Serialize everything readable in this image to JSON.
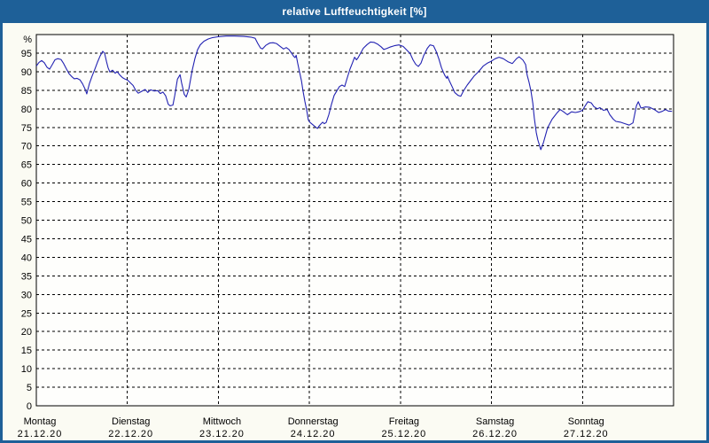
{
  "window": {
    "title": "relative Luftfeuchtigkeit [%]"
  },
  "colors": {
    "chrome": "#1e6098",
    "title_text": "#ffffff",
    "background": "#fbfbf3",
    "plot_background": "#fefefc",
    "line": "#2222b2",
    "grid": "#000000",
    "axis": "#000000",
    "label_text": "#000000"
  },
  "chart_data": {
    "type": "line",
    "title": "relative Luftfeuchtigkeit [%]",
    "ylabel": "%",
    "ylim": [
      0,
      100
    ],
    "y_ticks": [
      0,
      5,
      10,
      15,
      20,
      25,
      30,
      35,
      40,
      45,
      50,
      55,
      60,
      65,
      70,
      75,
      80,
      85,
      90,
      95
    ],
    "grid": true,
    "legend": "none",
    "x_range_hours": [
      0,
      168
    ],
    "x_axis": {
      "days": [
        {
          "name": "Montag",
          "date": "21.12.20"
        },
        {
          "name": "Dienstag",
          "date": "22.12.20"
        },
        {
          "name": "Mittwoch",
          "date": "23.12.20"
        },
        {
          "name": "Donnerstag",
          "date": "24.12.20"
        },
        {
          "name": "Freitag",
          "date": "25.12.20"
        },
        {
          "name": "Samstag",
          "date": "26.12.20"
        },
        {
          "name": "Sonntag",
          "date": "27.12.20"
        }
      ]
    },
    "series": [
      {
        "name": "relative Luftfeuchtigkeit",
        "unit": "%",
        "points": [
          [
            0,
            91.5
          ],
          [
            0.7,
            92.5
          ],
          [
            1.4,
            93.0
          ],
          [
            2.1,
            92.4
          ],
          [
            2.8,
            91.2
          ],
          [
            3.5,
            90.7
          ],
          [
            4.2,
            91.9
          ],
          [
            4.9,
            93.2
          ],
          [
            5.6,
            93.5
          ],
          [
            6.5,
            93.3
          ],
          [
            7.2,
            92.2
          ],
          [
            7.9,
            90.8
          ],
          [
            8.6,
            89.5
          ],
          [
            9.3,
            88.7
          ],
          [
            10,
            88.1
          ],
          [
            10.7,
            88.2
          ],
          [
            11.5,
            87.8
          ],
          [
            12.2,
            86.7
          ],
          [
            12.9,
            85.2
          ],
          [
            13.3,
            84.0
          ],
          [
            14,
            86.8
          ],
          [
            14.7,
            88.8
          ],
          [
            15.4,
            90.6
          ],
          [
            16.1,
            92.5
          ],
          [
            16.8,
            94.2
          ],
          [
            17.5,
            95.5
          ],
          [
            18,
            95.0
          ],
          [
            18.5,
            92.7
          ],
          [
            18.9,
            91.1
          ],
          [
            19.4,
            89.9
          ],
          [
            20.1,
            90.4
          ],
          [
            20.8,
            89.6
          ],
          [
            21.3,
            90.0
          ],
          [
            22,
            89.1
          ],
          [
            22.7,
            88.4
          ],
          [
            23.4,
            88.0
          ],
          [
            24.1,
            87.7
          ],
          [
            24.8,
            87.0
          ],
          [
            25.5,
            86.3
          ],
          [
            26.2,
            85.0
          ],
          [
            26.9,
            84.2
          ],
          [
            27.6,
            84.6
          ],
          [
            28.7,
            85.2
          ],
          [
            29.4,
            84.4
          ],
          [
            30.1,
            85.1
          ],
          [
            31.1,
            84.8
          ],
          [
            32,
            84.9
          ],
          [
            32.7,
            84.1
          ],
          [
            33.4,
            84.5
          ],
          [
            34.1,
            83.5
          ],
          [
            34.8,
            81.2
          ],
          [
            35.3,
            80.8
          ],
          [
            36,
            81.0
          ],
          [
            36.5,
            83.6
          ],
          [
            37.2,
            88.0
          ],
          [
            37.9,
            89.2
          ],
          [
            38.3,
            87.0
          ],
          [
            39,
            83.9
          ],
          [
            39.5,
            83.2
          ],
          [
            40.2,
            85.2
          ],
          [
            41.1,
            90.4
          ],
          [
            41.8,
            93.5
          ],
          [
            42.5,
            95.9
          ],
          [
            43.2,
            97.2
          ],
          [
            44.2,
            98.2
          ],
          [
            45.3,
            98.8
          ],
          [
            46.5,
            99.2
          ],
          [
            47.9,
            99.4
          ],
          [
            50,
            99.6
          ],
          [
            52.3,
            99.6
          ],
          [
            54.7,
            99.5
          ],
          [
            56.6,
            99.3
          ],
          [
            57.7,
            99.0
          ],
          [
            58.4,
            97.6
          ],
          [
            59.1,
            96.4
          ],
          [
            59.6,
            96.1
          ],
          [
            60.5,
            97.1
          ],
          [
            61.5,
            97.7
          ],
          [
            62.4,
            97.8
          ],
          [
            63.3,
            97.6
          ],
          [
            64.3,
            96.8
          ],
          [
            65.2,
            96.1
          ],
          [
            65.9,
            96.5
          ],
          [
            66.6,
            96.0
          ],
          [
            67.3,
            95.0
          ],
          [
            67.8,
            94.2
          ],
          [
            68.2,
            93.8
          ],
          [
            68.5,
            94.4
          ],
          [
            68.9,
            92.3
          ],
          [
            69.4,
            89.9
          ],
          [
            69.9,
            87.5
          ],
          [
            70.3,
            84.8
          ],
          [
            70.8,
            82.0
          ],
          [
            71.3,
            79.6
          ],
          [
            71.7,
            77.0
          ],
          [
            72.2,
            76.3
          ],
          [
            72.9,
            75.7
          ],
          [
            73.6,
            75.1
          ],
          [
            74.1,
            74.7
          ],
          [
            74.5,
            75.3
          ],
          [
            75,
            75.9
          ],
          [
            75.5,
            76.4
          ],
          [
            75.9,
            76.0
          ],
          [
            76.4,
            76.3
          ],
          [
            77.1,
            78.4
          ],
          [
            77.8,
            81.2
          ],
          [
            78.5,
            83.6
          ],
          [
            79.2,
            84.8
          ],
          [
            79.9,
            86.0
          ],
          [
            80.6,
            86.4
          ],
          [
            81.3,
            86.0
          ],
          [
            82,
            88.4
          ],
          [
            82.7,
            90.7
          ],
          [
            83.4,
            92.5
          ],
          [
            83.9,
            93.9
          ],
          [
            84.4,
            93.2
          ],
          [
            84.8,
            93.7
          ],
          [
            85.5,
            95.0
          ],
          [
            86.2,
            96.3
          ],
          [
            87.2,
            97.3
          ],
          [
            88.1,
            98.0
          ],
          [
            89,
            97.9
          ],
          [
            90,
            97.4
          ],
          [
            90.9,
            96.7
          ],
          [
            91.6,
            96.0
          ],
          [
            92.3,
            96.2
          ],
          [
            93.2,
            96.6
          ],
          [
            94.4,
            97.0
          ],
          [
            95.6,
            97.2
          ],
          [
            96.7,
            96.8
          ],
          [
            97.7,
            95.8
          ],
          [
            98.6,
            94.8
          ],
          [
            99.3,
            93.2
          ],
          [
            100,
            92.0
          ],
          [
            100.7,
            91.4
          ],
          [
            101.4,
            92.3
          ],
          [
            102.1,
            94.3
          ],
          [
            103.1,
            96.3
          ],
          [
            103.8,
            97.2
          ],
          [
            104.7,
            97.0
          ],
          [
            105.4,
            95.5
          ],
          [
            106.1,
            93.5
          ],
          [
            106.8,
            91.1
          ],
          [
            107.3,
            89.9
          ],
          [
            107.7,
            89.0
          ],
          [
            108.2,
            88.2
          ],
          [
            108.4,
            88.8
          ],
          [
            108.9,
            87.5
          ],
          [
            109.6,
            86.0
          ],
          [
            110.3,
            84.4
          ],
          [
            111.2,
            83.6
          ],
          [
            111.9,
            83.4
          ],
          [
            112.6,
            84.8
          ],
          [
            113.6,
            86.4
          ],
          [
            114.5,
            87.6
          ],
          [
            115.4,
            88.8
          ],
          [
            116.6,
            90.0
          ],
          [
            117.8,
            91.5
          ],
          [
            118.9,
            92.3
          ],
          [
            119.9,
            92.8
          ],
          [
            121,
            93.5
          ],
          [
            122,
            93.9
          ],
          [
            123.1,
            93.5
          ],
          [
            124.3,
            92.7
          ],
          [
            125.5,
            92.2
          ],
          [
            126.6,
            93.5
          ],
          [
            127.3,
            94.0
          ],
          [
            128.3,
            93.1
          ],
          [
            129,
            91.9
          ],
          [
            129.4,
            89.1
          ],
          [
            129.9,
            87.2
          ],
          [
            130.4,
            84.8
          ],
          [
            130.9,
            81.5
          ],
          [
            131.3,
            77.5
          ],
          [
            131.8,
            73.6
          ],
          [
            132.2,
            71.7
          ],
          [
            133,
            69.0
          ],
          [
            133.7,
            70.9
          ],
          [
            134.8,
            74.9
          ],
          [
            136,
            77.2
          ],
          [
            137.2,
            78.8
          ],
          [
            138.1,
            79.8
          ],
          [
            139,
            79.2
          ],
          [
            140,
            78.4
          ],
          [
            141.1,
            79.2
          ],
          [
            142.1,
            79.0
          ],
          [
            143,
            79.2
          ],
          [
            144,
            79.6
          ],
          [
            144.7,
            80.8
          ],
          [
            145.4,
            81.9
          ],
          [
            146.3,
            81.6
          ],
          [
            147,
            80.6
          ],
          [
            147.9,
            80.0
          ],
          [
            148.6,
            80.3
          ],
          [
            149.5,
            79.6
          ],
          [
            150.5,
            79.8
          ],
          [
            151.2,
            78.4
          ],
          [
            152.1,
            77.2
          ],
          [
            152.8,
            76.6
          ],
          [
            154,
            76.4
          ],
          [
            155.2,
            76.0
          ],
          [
            156.3,
            75.6
          ],
          [
            157.3,
            76.2
          ],
          [
            158.2,
            80.8
          ],
          [
            158.7,
            81.9
          ],
          [
            159.4,
            80.2
          ],
          [
            160.6,
            80.5
          ],
          [
            161.7,
            80.4
          ],
          [
            162.9,
            79.8
          ],
          [
            164.1,
            79.0
          ],
          [
            165,
            79.3
          ],
          [
            165.9,
            79.8
          ],
          [
            166.6,
            79.4
          ],
          [
            167.6,
            79.3
          ]
        ]
      }
    ]
  }
}
